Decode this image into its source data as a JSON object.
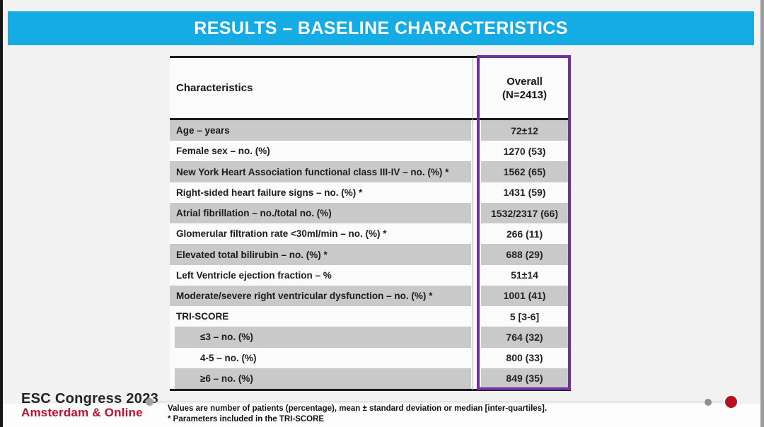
{
  "slide": {
    "title": "RESULTS – BASELINE CHARACTERISTICS"
  },
  "table": {
    "col1_header": "Characteristics",
    "col2_header_line1": "Overall",
    "col2_header_line2": "(N=2413)",
    "rows": [
      {
        "label": "Age – years",
        "value": "72±12",
        "shaded": true,
        "indent": false
      },
      {
        "label": "Female sex – no. (%)",
        "value": "1270 (53)",
        "shaded": false,
        "indent": false
      },
      {
        "label": "New York Heart Association functional class III-IV – no. (%) *",
        "value": "1562 (65)",
        "shaded": true,
        "indent": false
      },
      {
        "label": "Right-sided heart failure signs – no. (%) *",
        "value": "1431 (59)",
        "shaded": false,
        "indent": false
      },
      {
        "label": "Atrial fibrillation – no./total no. (%)",
        "value": "1532/2317 (66)",
        "shaded": true,
        "indent": false
      },
      {
        "label": "Glomerular filtration rate <30ml/min – no. (%) *",
        "value": "266 (11)",
        "shaded": false,
        "indent": false
      },
      {
        "label": "Elevated total bilirubin – no. (%) *",
        "value": "688 (29)",
        "shaded": true,
        "indent": false
      },
      {
        "label": "Left Ventricle ejection fraction – %",
        "value": "51±14",
        "shaded": false,
        "indent": false
      },
      {
        "label": "Moderate/severe right ventricular dysfunction – no. (%) *",
        "value": "1001 (41)",
        "shaded": true,
        "indent": false
      },
      {
        "label": "TRI-SCORE",
        "value": "5 [3-6]",
        "shaded": false,
        "indent": false
      },
      {
        "label": "≤3 – no. (%)",
        "value": "764 (32)",
        "shaded": true,
        "indent": true
      },
      {
        "label": "4-5 – no. (%)",
        "value": "800 (33)",
        "shaded": false,
        "indent": true
      },
      {
        "label": "≥6 – no. (%)",
        "value": "849 (35)",
        "shaded": true,
        "indent": true
      }
    ]
  },
  "footer": {
    "congress_line1": "ESC Congress 2023",
    "congress_line2": "Amsterdam & Online",
    "note_line1": "Values are number of patients (percentage), mean ± standard deviation or median [inter-quartiles].",
    "note_line2": "* Parameters included in the TRI-SCORE"
  },
  "colors": {
    "bg": "#f2f2f2",
    "accent-cyan": "#15ace5",
    "accent-purple": "#7030a0",
    "accent-red": "#c00f2d",
    "dot-red": "#b5121b",
    "row-gray": "#c9c9c9",
    "row-white": "#fbfbfb"
  }
}
